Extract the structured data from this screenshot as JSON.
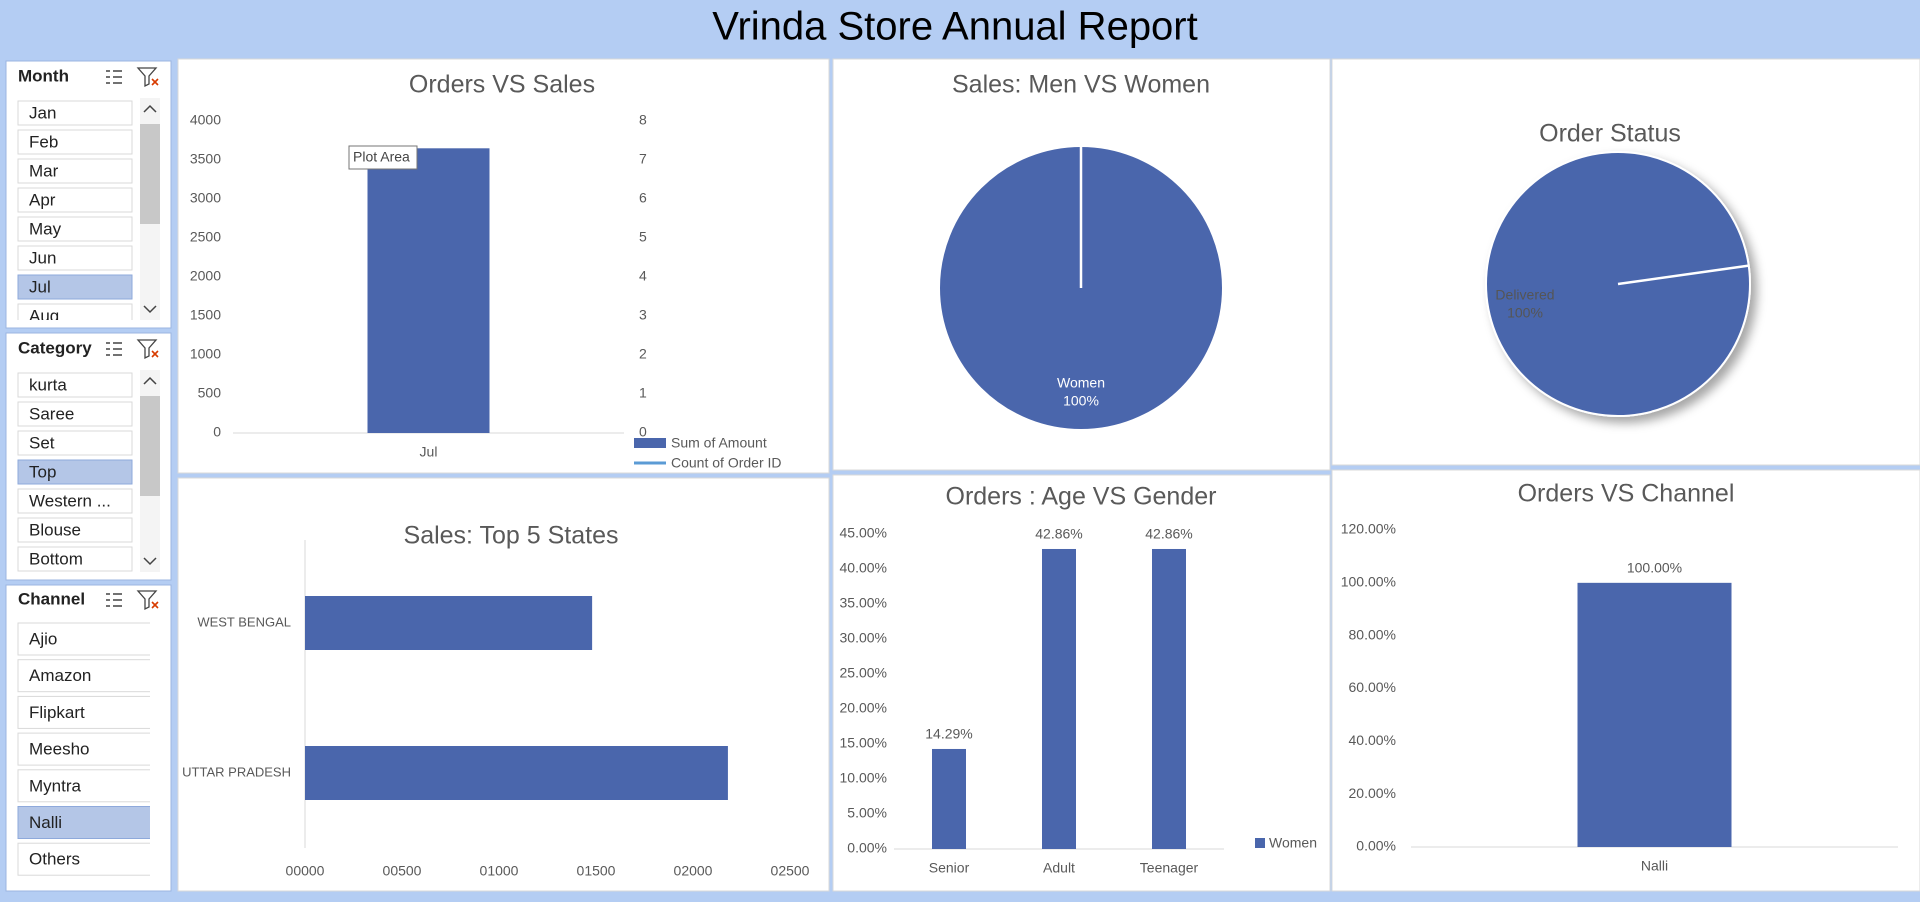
{
  "header": {
    "title": "Vrinda Store Annual Report"
  },
  "slicers": [
    {
      "title": "Month",
      "items": [
        "Jan",
        "Feb",
        "Mar",
        "Apr",
        "May",
        "Jun",
        "Jul",
        "Aug"
      ],
      "selected": [
        "Jul"
      ],
      "unavailable": []
    },
    {
      "title": "Category",
      "items": [
        "kurta",
        "Saree",
        "Set",
        "Top",
        "Western ...",
        "Blouse",
        "Bottom"
      ],
      "selected": [
        "Top"
      ],
      "unavailable": [
        "Blouse",
        "Bottom"
      ]
    },
    {
      "title": "Channel",
      "items": [
        "Ajio",
        "Amazon",
        "Flipkart",
        "Meesho",
        "Myntra",
        "Nalli",
        "Others"
      ],
      "selected": [
        "Nalli"
      ],
      "unavailable": []
    }
  ],
  "chart_data": [
    {
      "type": "bar",
      "title": "Orders VS Sales",
      "categories": [
        "Jul"
      ],
      "series": [
        {
          "name": "Sum of Amount",
          "color": "#4a66ac",
          "values": [
            3650
          ]
        },
        {
          "name": "Count of Order ID",
          "color": "#5b9bd5",
          "values": [
            null
          ],
          "type": "line",
          "axis": "y2"
        }
      ],
      "ylim": [
        0,
        4000
      ],
      "yticks": [
        0,
        500,
        1000,
        1500,
        2000,
        2500,
        3000,
        3500,
        4000
      ],
      "y2lim": [
        0,
        8
      ],
      "y2ticks": [
        0,
        1,
        2,
        3,
        4,
        5,
        6,
        7,
        8
      ],
      "annotations": [
        "Plot Area"
      ],
      "legend": "bottom-right"
    },
    {
      "type": "pie",
      "title": "Sales: Men VS Women",
      "categories": [
        "Women"
      ],
      "values": [
        100
      ],
      "value_labels": [
        "100%"
      ],
      "color": "#4a66ac"
    },
    {
      "type": "pie",
      "title": "Order Status",
      "categories": [
        "Delivered"
      ],
      "values": [
        100
      ],
      "value_labels": [
        "100%"
      ],
      "color": "#4a66ac",
      "shadow": true
    },
    {
      "type": "hbar",
      "title": "Sales: Top 5 States",
      "categories": [
        "WEST BENGAL",
        "UTTAR PRADESH"
      ],
      "values": [
        1480,
        2180
      ],
      "color": "#4a66ac",
      "xlim": [
        0,
        2500
      ],
      "xticks": [
        {
          "value": 0,
          "label": "00000"
        },
        {
          "value": 500,
          "label": "00500"
        },
        {
          "value": 1000,
          "label": "01000"
        },
        {
          "value": 1500,
          "label": "01500"
        },
        {
          "value": 2000,
          "label": "02000"
        },
        {
          "value": 2500,
          "label": "02500"
        }
      ]
    },
    {
      "type": "bar",
      "title": "Orders : Age VS Gender",
      "categories": [
        "Senior",
        "Adult",
        "Teenager"
      ],
      "series": [
        {
          "name": "Women",
          "color": "#4a66ac",
          "values": [
            14.29,
            42.86,
            42.86
          ],
          "value_labels": [
            "14.29%",
            "42.86%",
            "42.86%"
          ]
        }
      ],
      "ylim": [
        0,
        45
      ],
      "yticks": [
        {
          "value": 0,
          "label": "0.00%"
        },
        {
          "value": 5,
          "label": "5.00%"
        },
        {
          "value": 10,
          "label": "10.00%"
        },
        {
          "value": 15,
          "label": "15.00%"
        },
        {
          "value": 20,
          "label": "20.00%"
        },
        {
          "value": 25,
          "label": "25.00%"
        },
        {
          "value": 30,
          "label": "30.00%"
        },
        {
          "value": 35,
          "label": "35.00%"
        },
        {
          "value": 40,
          "label": "40.00%"
        },
        {
          "value": 45,
          "label": "45.00%"
        }
      ],
      "legend": "right"
    },
    {
      "type": "bar",
      "title": "Orders VS Channel",
      "categories": [
        "Nalli"
      ],
      "series": [
        {
          "values": [
            100
          ],
          "value_labels": [
            "100.00%"
          ],
          "color": "#4a66ac"
        }
      ],
      "ylim": [
        0,
        120
      ],
      "yticks": [
        {
          "value": 0,
          "label": "0.00%"
        },
        {
          "value": 20,
          "label": "20.00%"
        },
        {
          "value": 40,
          "label": "40.00%"
        },
        {
          "value": 60,
          "label": "60.00%"
        },
        {
          "value": 80,
          "label": "80.00%"
        },
        {
          "value": 100,
          "label": "100.00%"
        },
        {
          "value": 120,
          "label": "120.00%"
        }
      ]
    }
  ]
}
